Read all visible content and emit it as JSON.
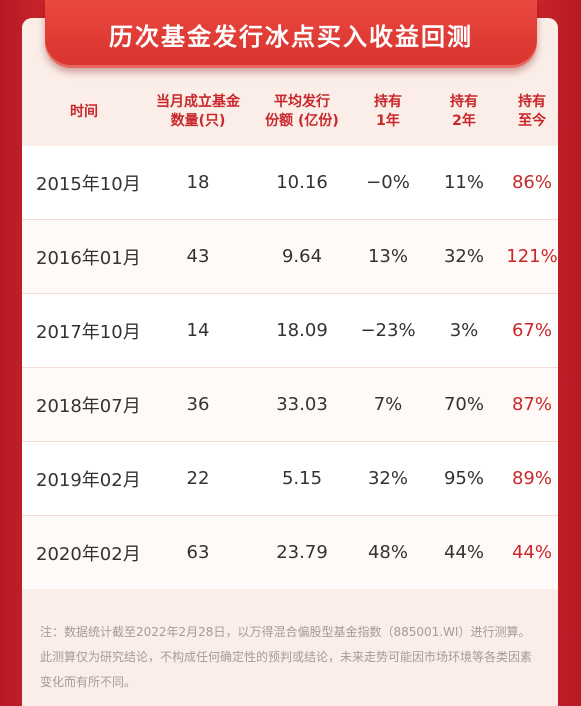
{
  "title": "历次基金发行冰点买入收益回测",
  "header": {
    "col_time": "时间",
    "col_count": "当月成立基金\n数量(只)",
    "col_avg": "平均发行\n份额 (亿份)",
    "col_1y": "持有\n1年",
    "col_2y": "持有\n2年",
    "col_now": "持有\n至今"
  },
  "rows": [
    {
      "date": "2015年10月",
      "count": "18",
      "avg": "10.16",
      "y1": "−0%",
      "y2": "11%",
      "now": "86%"
    },
    {
      "date": "2016年01月",
      "count": "43",
      "avg": "9.64",
      "y1": "13%",
      "y2": "32%",
      "now": "121%"
    },
    {
      "date": "2017年10月",
      "count": "14",
      "avg": "18.09",
      "y1": "−23%",
      "y2": "3%",
      "now": "67%"
    },
    {
      "date": "2018年07月",
      "count": "36",
      "avg": "33.03",
      "y1": "7%",
      "y2": "70%",
      "now": "87%"
    },
    {
      "date": "2019年02月",
      "count": "22",
      "avg": "5.15",
      "y1": "32%",
      "y2": "95%",
      "now": "89%"
    },
    {
      "date": "2020年02月",
      "count": "63",
      "avg": "23.79",
      "y1": "48%",
      "y2": "44%",
      "now": "44%"
    }
  ],
  "note": "注：数据统计截至2022年2月28日，以万得混合偏股型基金指数（885001.WI）进行测算。此测算仅为研究结论，不构成任何确定性的预判或结论，未来走势可能因市场环境等各类因素变化而有所不同。",
  "colors": {
    "accent": "#c9272b",
    "background": "#e8463f",
    "card": "#fbeee8"
  }
}
